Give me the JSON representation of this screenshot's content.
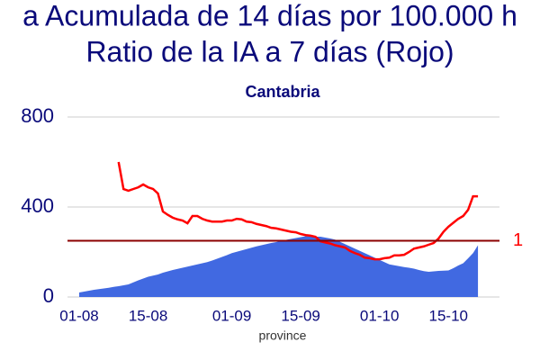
{
  "chart_data": {
    "type": "area-line",
    "title": "a Acumulada de 14 días por 100.000 h",
    "subtitle": "Ratio de la IA a 7 días (Rojo)",
    "region": "Cantabria",
    "x_label": "province",
    "categories": [
      "01-08",
      null,
      null,
      null,
      null,
      null,
      null,
      null,
      null,
      null,
      null,
      null,
      null,
      null,
      "15-08",
      null,
      null,
      null,
      null,
      null,
      null,
      null,
      null,
      null,
      null,
      null,
      null,
      null,
      null,
      null,
      null,
      "01-09",
      null,
      null,
      null,
      null,
      null,
      null,
      null,
      null,
      null,
      null,
      null,
      null,
      null,
      "15-09",
      null,
      null,
      null,
      null,
      null,
      null,
      null,
      null,
      null,
      null,
      null,
      null,
      null,
      null,
      null,
      "01-10",
      null,
      null,
      null,
      null,
      null,
      null,
      null,
      null,
      null,
      null,
      null,
      null,
      null,
      "15-10",
      null,
      null,
      null,
      null,
      null,
      null
    ],
    "series": [
      {
        "color": "#4169e1",
        "axis": "y",
        "values": [
          20,
          24,
          28,
          32,
          35,
          38,
          41,
          45,
          48,
          52,
          56,
          65,
          74,
          82,
          90,
          95,
          100,
          108,
          114,
          120,
          125,
          130,
          135,
          140,
          145,
          150,
          155,
          162,
          170,
          178,
          186,
          195,
          201,
          207,
          213,
          219,
          225,
          230,
          235,
          240,
          244,
          249,
          254,
          258,
          262,
          266,
          270,
          269,
          268,
          268,
          264,
          260,
          255,
          245,
          235,
          225,
          215,
          205,
          195,
          185,
          175,
          165,
          155,
          145,
          141,
          137,
          133,
          130,
          126,
          120,
          115,
          112,
          114,
          116,
          117,
          118,
          128,
          140,
          150,
          172,
          195,
          230
        ]
      },
      {
        "color": "#ff0000",
        "axis": "y2",
        "values": [
          null,
          null,
          null,
          null,
          null,
          null,
          null,
          null,
          2.4,
          1.92,
          1.89,
          1.92,
          1.95,
          2.0,
          1.95,
          1.92,
          1.84,
          1.52,
          1.46,
          1.41,
          1.38,
          1.36,
          1.31,
          1.44,
          1.44,
          1.39,
          1.36,
          1.34,
          1.34,
          1.34,
          1.36,
          1.36,
          1.39,
          1.38,
          1.34,
          1.33,
          1.3,
          1.28,
          1.26,
          1.23,
          1.22,
          1.2,
          1.18,
          1.16,
          1.15,
          1.12,
          1.1,
          1.09,
          1.07,
          0.99,
          0.97,
          0.95,
          0.92,
          0.9,
          0.88,
          0.82,
          0.78,
          0.75,
          0.7,
          0.69,
          0.67,
          0.67,
          0.69,
          0.7,
          0.74,
          0.74,
          0.75,
          0.8,
          0.86,
          0.88,
          0.9,
          0.93,
          0.96,
          1.04,
          1.16,
          1.25,
          1.32,
          1.39,
          1.44,
          1.55,
          1.79,
          1.79
        ]
      }
    ],
    "ylim": [
      0,
      800
    ],
    "yticks": [
      0,
      400,
      800
    ],
    "y2lim": [
      0,
      3.2
    ],
    "y2ticks": [
      1
    ],
    "y2_line_color": "#8b0000",
    "grid": true
  }
}
